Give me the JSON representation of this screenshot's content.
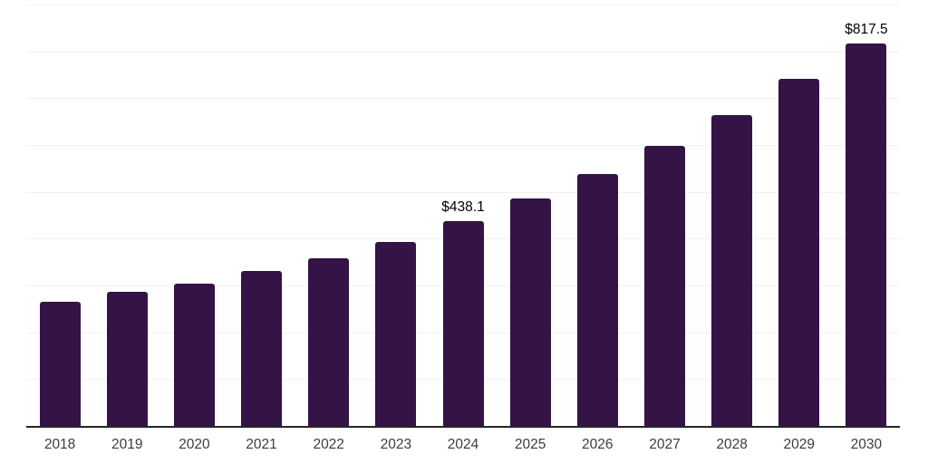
{
  "chart_data": {
    "type": "bar",
    "categories": [
      "2018",
      "2019",
      "2020",
      "2021",
      "2022",
      "2023",
      "2024",
      "2025",
      "2026",
      "2027",
      "2028",
      "2029",
      "2030"
    ],
    "values": [
      266,
      287,
      304,
      331,
      359,
      392,
      438.1,
      486,
      539,
      599,
      664,
      741,
      817.5
    ],
    "data_labels": [
      "",
      "",
      "",
      "",
      "",
      "",
      "$438.1",
      "",
      "",
      "",
      "",
      "",
      "$817.5"
    ],
    "title": "",
    "xlabel": "",
    "ylabel": "",
    "ylim": [
      0,
      900
    ],
    "gridline_step": 100,
    "grid": "horizontal",
    "legend": "none",
    "colors": {
      "bar": "#341347",
      "axis_line": "#262626",
      "gridline": "#f2f2f2",
      "tick_label": "#3c3c3c",
      "data_label": "#000000",
      "background": "#ffffff"
    }
  }
}
